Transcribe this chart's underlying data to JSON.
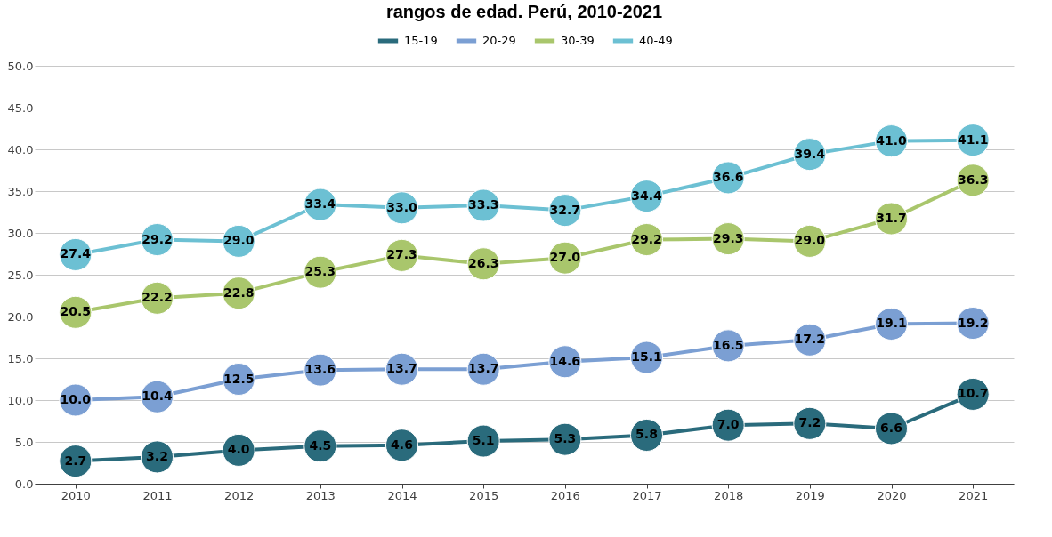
{
  "chart_data": {
    "type": "line",
    "title": "rangos de edad. Perú, 2010-2021",
    "categories": [
      "2010",
      "2011",
      "2012",
      "2013",
      "2014",
      "2015",
      "2016",
      "2017",
      "2018",
      "2019",
      "2020",
      "2021"
    ],
    "series": [
      {
        "name": "15-19",
        "color": "#2a6b7c",
        "values": [
          2.7,
          3.2,
          4.0,
          4.5,
          4.6,
          5.1,
          5.3,
          5.8,
          7.0,
          7.2,
          6.6,
          10.7
        ],
        "value_labels": [
          "2.7",
          "3.2",
          "4.0",
          "4.5",
          "4.6",
          "5.1",
          "5.3",
          "5.8",
          "7.0",
          "7.2",
          "6.6",
          "10.7"
        ]
      },
      {
        "name": "20-29",
        "color": "#7b9fd3",
        "values": [
          10.0,
          10.4,
          12.5,
          13.6,
          13.7,
          13.7,
          14.6,
          15.1,
          16.5,
          17.2,
          19.1,
          19.2
        ],
        "value_labels": [
          "10.0",
          "10.4",
          "12.5",
          "13.6",
          "13.7",
          "13.7",
          "14.6",
          "15.1",
          "16.5",
          "17.2",
          "19.1",
          "19.2"
        ]
      },
      {
        "name": "30-39",
        "color": "#a9c66c",
        "values": [
          20.5,
          22.2,
          22.8,
          25.3,
          27.3,
          26.3,
          27.0,
          29.2,
          29.3,
          29.0,
          31.7,
          36.3
        ],
        "value_labels": [
          "20.5",
          "22.2",
          "22.8",
          "25.3",
          "27.3",
          "26.3",
          "27.0",
          "29.2",
          "29.3",
          "29.0",
          "31.7",
          "36.3"
        ]
      },
      {
        "name": "40-49",
        "color": "#6cc0d3",
        "values": [
          27.4,
          29.2,
          29.0,
          33.4,
          33.0,
          33.3,
          32.7,
          34.4,
          36.6,
          39.4,
          41.0,
          41.1
        ],
        "value_labels": [
          "27.4",
          "29.2",
          "29.0",
          "33.4",
          "33.0",
          "33.3",
          "32.7",
          "34.4",
          "36.6",
          "39.4",
          "41.0",
          "41.1"
        ]
      }
    ],
    "ylim": [
      0,
      50
    ],
    "yticks": [
      {
        "value": 0,
        "label": "0.0"
      },
      {
        "value": 5,
        "label": "5.0"
      },
      {
        "value": 10,
        "label": "10.0"
      },
      {
        "value": 15,
        "label": "15.0"
      },
      {
        "value": 20,
        "label": "20.0"
      },
      {
        "value": 25,
        "label": "25.0"
      },
      {
        "value": 30,
        "label": "30.0"
      },
      {
        "value": 35,
        "label": "35.0"
      },
      {
        "value": 40,
        "label": "40.0"
      },
      {
        "value": 45,
        "label": "45.0"
      },
      {
        "value": 50,
        "label": "50.0"
      }
    ],
    "grid": "y",
    "legend": "top",
    "marker": "circle",
    "line_style": "solid"
  }
}
